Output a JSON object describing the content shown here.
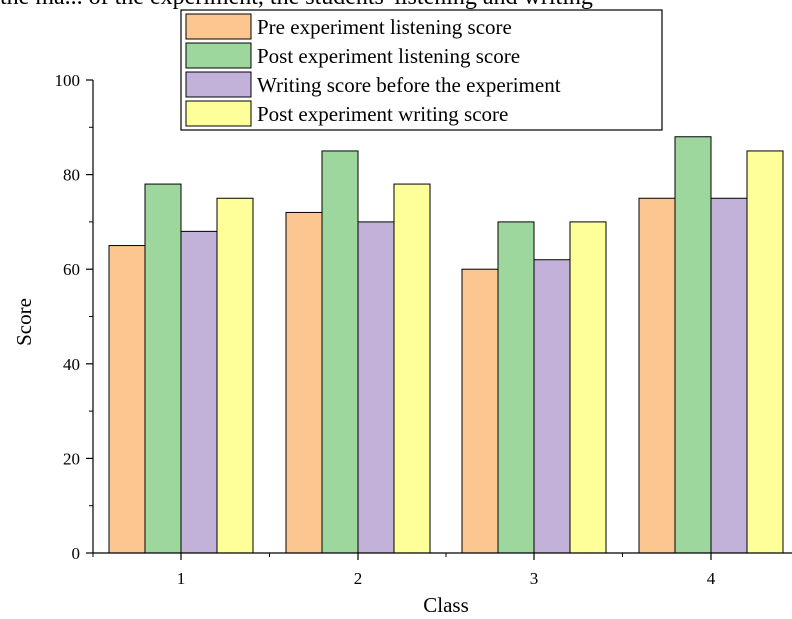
{
  "header_text": "the ma... of the experiment, the students' listening and writing",
  "chart_data": {
    "type": "bar",
    "categories": [
      "1",
      "2",
      "3",
      "4"
    ],
    "series": [
      {
        "name": "Pre experiment listening score",
        "values": [
          65,
          72,
          60,
          75
        ],
        "color": "#FCC690"
      },
      {
        "name": "Post experiment listening score",
        "values": [
          78,
          85,
          70,
          88
        ],
        "color": "#9DD79D"
      },
      {
        "name": "Writing score before the experiment",
        "values": [
          68,
          70,
          62,
          75
        ],
        "color": "#C2B2DA"
      },
      {
        "name": "Post experiment writing score",
        "values": [
          75,
          78,
          70,
          85
        ],
        "color": "#FFFF9A"
      }
    ],
    "xlabel": "Class",
    "ylabel": "Score",
    "ylim": [
      0,
      100
    ],
    "yticks": [
      "0",
      "20",
      "40",
      "60",
      "80",
      "100"
    ],
    "grid": false,
    "legend_position": "top"
  }
}
